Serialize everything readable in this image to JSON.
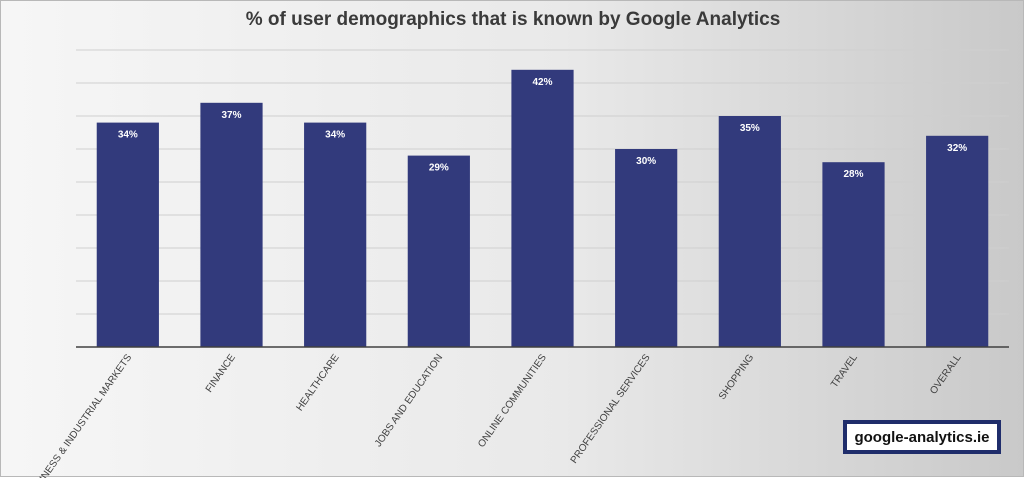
{
  "colors": {
    "bar": "#323a7c",
    "grid": "#cfcfcf",
    "axis": "#404040",
    "bar_label": "#ffffff"
  },
  "watermark": {
    "text": "google-analytics.ie"
  },
  "chart_data": {
    "type": "bar",
    "title": "% of user demographics that is known by Google Analytics",
    "xlabel": "",
    "ylabel": "",
    "ylim": [
      0,
      45
    ],
    "grid": true,
    "legend": "none",
    "categories": [
      "BUSINESS & INDUSTRIAL MARKETS",
      "FINANCE",
      "HEALTHCARE",
      "JOBS AND EDUCATION",
      "ONLINE COMMUNITIES",
      "PROFESSIONAL SERVICES",
      "SHOPPING",
      "TRAVEL",
      "OVERALL"
    ],
    "values": [
      34,
      37,
      34,
      29,
      42,
      30,
      35,
      28,
      32
    ],
    "value_labels": [
      "34%",
      "37%",
      "34%",
      "29%",
      "42%",
      "30%",
      "35%",
      "28%",
      "32%"
    ]
  }
}
